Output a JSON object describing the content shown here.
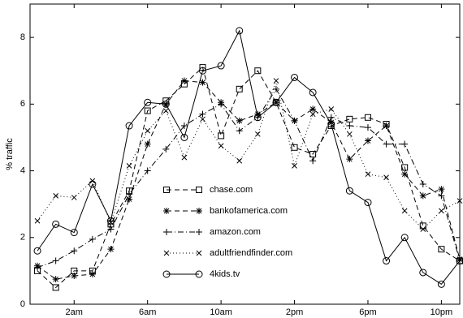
{
  "chart_data": {
    "type": "line",
    "y_label": "% traffic",
    "x": [
      0,
      1,
      2,
      3,
      4,
      5,
      6,
      7,
      8,
      9,
      10,
      11,
      12,
      13,
      14,
      15,
      16,
      17,
      18,
      19,
      20,
      21,
      22,
      23
    ],
    "xlim": [
      -0.4,
      23
    ],
    "xticks": [
      {
        "value": 2,
        "label": "2am"
      },
      {
        "value": 6,
        "label": "6am"
      },
      {
        "value": 10,
        "label": "10am"
      },
      {
        "value": 14,
        "label": "2pm"
      },
      {
        "value": 18,
        "label": "6pm"
      },
      {
        "value": 22,
        "label": "10pm"
      }
    ],
    "ylim": [
      0,
      9
    ],
    "yticks": [
      0,
      2,
      4,
      6,
      8
    ],
    "grid": false,
    "series": [
      {
        "name": "chase.com",
        "color": "#000000",
        "linestyle": "dashed",
        "marker": "square",
        "values": [
          1.0,
          0.5,
          1.0,
          1.0,
          2.4,
          3.4,
          5.8,
          6.1,
          6.6,
          7.1,
          5.05,
          6.45,
          7.0,
          6.05,
          4.7,
          4.5,
          5.35,
          5.55,
          5.6,
          5.4,
          4.1,
          2.35,
          1.65,
          1.3
        ]
      },
      {
        "name": "bankofamerica.com",
        "color": "#000000",
        "linestyle": "dashed",
        "marker": "star",
        "values": [
          1.15,
          0.75,
          0.85,
          0.9,
          1.65,
          3.15,
          4.8,
          6.0,
          6.7,
          6.65,
          6.05,
          5.5,
          5.7,
          6.05,
          5.5,
          5.85,
          5.45,
          4.35,
          4.9,
          5.35,
          3.9,
          3.25,
          3.45,
          1.35
        ]
      },
      {
        "name": "amazon.com",
        "color": "#000000",
        "linestyle": "dashdot",
        "marker": "plus",
        "values": [
          1.1,
          1.3,
          1.6,
          1.95,
          2.25,
          3.3,
          4.0,
          4.65,
          5.35,
          5.7,
          6.0,
          5.2,
          5.6,
          6.45,
          5.5,
          4.3,
          5.6,
          5.35,
          5.3,
          4.8,
          4.8,
          3.6,
          3.25,
          1.3
        ]
      },
      {
        "name": "adultfriendfinder.com",
        "color": "#000000",
        "linestyle": "dotted",
        "marker": "x",
        "values": [
          2.5,
          3.25,
          3.2,
          3.7,
          2.45,
          4.15,
          5.2,
          5.8,
          4.4,
          5.55,
          4.75,
          4.3,
          5.1,
          6.7,
          4.15,
          5.7,
          5.85,
          5.1,
          3.9,
          3.8,
          2.8,
          2.25,
          2.8,
          3.1
        ]
      },
      {
        "name": "4kids.tv",
        "color": "#000000",
        "linestyle": "solid",
        "marker": "circle",
        "values": [
          1.6,
          2.4,
          2.15,
          3.6,
          2.5,
          5.35,
          6.05,
          6.0,
          5.0,
          7.0,
          7.15,
          8.2,
          5.6,
          6.05,
          6.8,
          6.35,
          5.4,
          3.4,
          3.05,
          1.3,
          2.0,
          0.95,
          0.6,
          1.3
        ]
      }
    ]
  }
}
